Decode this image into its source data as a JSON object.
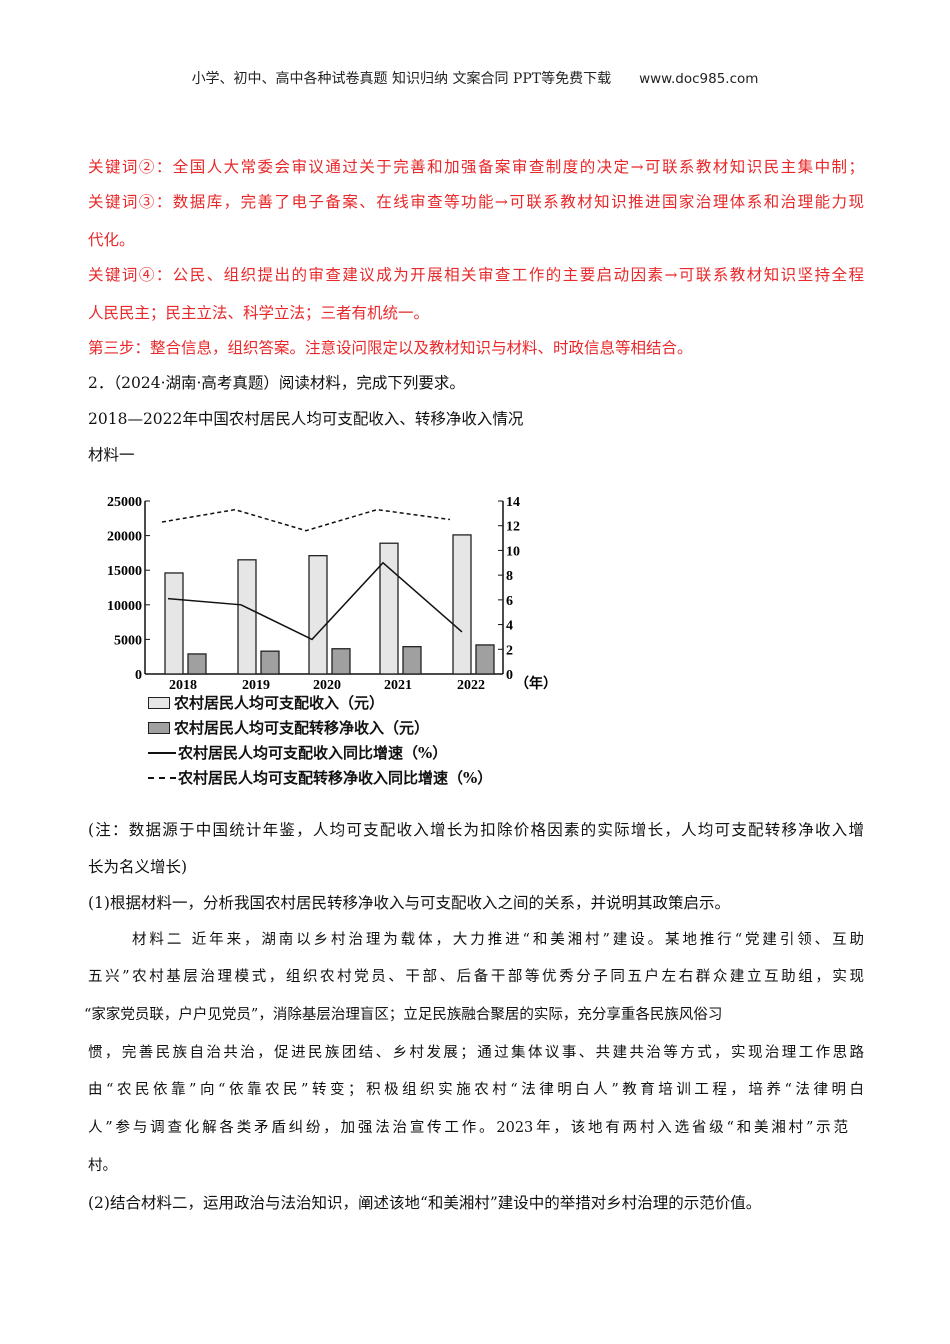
{
  "header": {
    "text": "小学、初中、高中各种试卷真题  知识归纳  文案合同  PPT等免费下载",
    "site": "www.doc985.com"
  },
  "red_lines": [
    "关键词②：全国人大常委会审议通过关于完善和加强备案审查制度的决定→可联系教材知识民主集中制；",
    "关键词③：数据库，完善了电子备案、在线审查等功能→可联系教材知识推进国家治理体系和治理能力现",
    "代化。",
    "关键词④：公民、组织提出的审查建议成为开展相关审查工作的主要启动因素→可联系教材知识坚持全程",
    "人民民主；民主立法、科学立法；三者有机统一。",
    "第三步：整合信息，组织答案。注意设问限定以及教材知识与材料、时政信息等相结合。"
  ],
  "question": {
    "number": "2．",
    "source": "（2024·湖南·高考真题）阅读材料，完成下列要求。",
    "chart_caption": "2018—2022年中国农村居民人均可支配收入、转移净收入情况",
    "material1": "材料一"
  },
  "chart_data": {
    "type": "bar+line",
    "categories": [
      "2018",
      "2019",
      "2020",
      "2021",
      "2022"
    ],
    "x_unit": "（年）",
    "left_axis": {
      "ylim": [
        0,
        25000
      ],
      "ticks": [
        "0",
        "5000",
        "10000",
        "15000",
        "20000",
        "25000"
      ]
    },
    "right_axis": {
      "ylim": [
        0,
        14
      ],
      "ticks": [
        "0",
        "2",
        "4",
        "6",
        "8",
        "10",
        "12",
        "14"
      ]
    },
    "series": [
      {
        "name": "农村居民人均可支配收入（元）",
        "type": "bar",
        "axis": "left",
        "color": "#e6e6e6",
        "values": [
          14600,
          16500,
          17100,
          18900,
          20100
        ]
      },
      {
        "name": "农村居民人均可支配转移净收入（元）",
        "type": "bar",
        "axis": "left",
        "color": "#a0a0a0",
        "values": [
          2900,
          3300,
          3650,
          3950,
          4200
        ]
      },
      {
        "name": "农村居民人均可支配收入同比增速（%）",
        "type": "line",
        "style": "solid",
        "axis": "right",
        "values": [
          6.1,
          5.6,
          2.8,
          9.0,
          3.4
        ]
      },
      {
        "name": "农村居民人均可支配转移净收入同比增速（%）",
        "type": "line",
        "style": "dashed",
        "axis": "right",
        "values": [
          12.3,
          13.3,
          11.6,
          13.3,
          12.5
        ]
      }
    ],
    "legend_position": "bottom"
  },
  "note": [
    "(注：数据源于中国统计年鉴，人均可支配收入增长为扣除价格因素的实际增长，人均可支配转移净收入增",
    "长为名义增长)"
  ],
  "q1": "(1)根据材料一，分析我国农村居民转移净收入与可支配收入之间的关系，并说明其政策启示。",
  "material2": [
    "材料二  近年来，湖南以乡村治理为载体，大力推进“和美湘村”建设。某地推行“党建引领、互助",
    "五兴”农村基层治理模式，组织农村党员、干部、后备干部等优秀分子同五户左右群众建立互助组，实现",
    "“家家党员联，户户见党员”，消除基层治理盲区；立足民族融合聚居的实际，充分享重各民族风俗习",
    "惯，完善民族自治共治，促进民族团结、乡村发展；通过集体议事、共建共治等方式，实现治理工作思路",
    "由“农民依靠”向“依靠农民”转变；积极组织实施农村“法律明白人”教育培训工程，培养“法律明白",
    "人”参与调查化解各类矛盾纠纷，加强法治宣传工作。2023年，该地有两村入选省级“和美湘村”示范",
    "村。"
  ],
  "q2": "(2)结合材料二，运用政治与法治知识，阐述该地“和美湘村”建设中的举措对乡村治理的示范价值。"
}
